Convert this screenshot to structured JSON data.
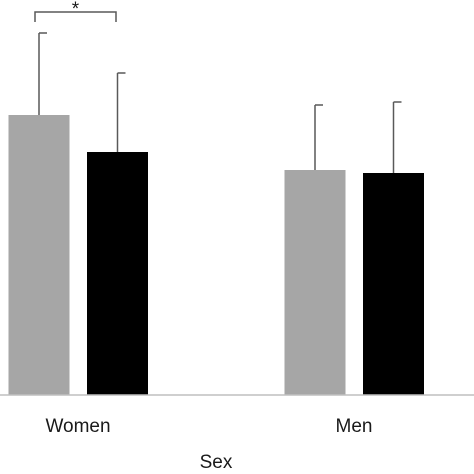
{
  "chart_data": {
    "type": "bar",
    "x_label": "Sex",
    "annotation": "*",
    "categories": [
      "Women",
      "Men"
    ],
    "series": [
      {
        "color": "#a6a6a6",
        "values": [
          280,
          225
        ],
        "errors": [
          82,
          65
        ]
      },
      {
        "color": "#000000",
        "values": [
          243,
          222
        ],
        "errors": [
          79,
          71
        ]
      }
    ],
    "ylim": [
      0,
      395
    ]
  }
}
